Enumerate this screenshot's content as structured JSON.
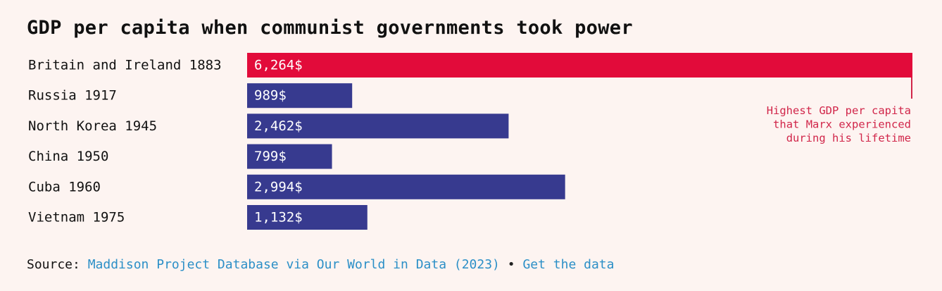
{
  "title": "GDP per capita when communist governments took power",
  "chart_data": {
    "type": "bar",
    "orientation": "horizontal",
    "categories": [
      "Britain and Ireland 1883",
      "Russia 1917",
      "North Korea 1945",
      "China 1950",
      "Cuba 1960",
      "Vietnam 1975"
    ],
    "values": [
      6264,
      989,
      2462,
      799,
      2994,
      1132
    ],
    "value_labels": [
      "6,264$",
      "989$",
      "2,462$",
      "799$",
      "2,994$",
      "1,132$"
    ],
    "bar_colors": [
      "#e20b3a",
      "#373a8f",
      "#373a8f",
      "#373a8f",
      "#373a8f",
      "#373a8f"
    ],
    "highlight_color": "#e20b3a",
    "bar_color": "#373a8f",
    "annotation": {
      "lines": [
        "Highest GDP per capita",
        "that Marx experienced",
        "during his lifetime"
      ],
      "target_category": "Britain and Ireland 1883",
      "color": "#d1264a"
    },
    "xlim": [
      0,
      6264
    ],
    "grid": false,
    "legend": "none"
  },
  "source": {
    "label": "Source:",
    "link_text": "Maddison Project Database via Our World in Data (2023)",
    "separator": "•",
    "data_link_text": "Get the data",
    "link_color": "#2b8fc7"
  }
}
